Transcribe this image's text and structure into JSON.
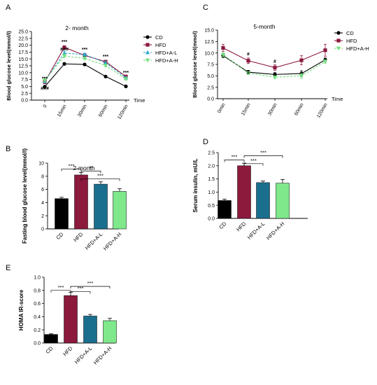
{
  "chart_data": [
    {
      "panel": "A",
      "type": "line",
      "title": "2- month",
      "xlabel": "Time",
      "ylabel": "Blood glucose level(mmol/l)",
      "categories": [
        "0",
        "15min",
        "30min",
        "60min",
        "120min"
      ],
      "ylim": [
        0,
        25
      ],
      "yticks": [
        "0.0",
        "2.5",
        "5.0",
        "7.5",
        "10.0",
        "12.5",
        "15.0",
        "17.5",
        "20.0",
        "22.5",
        "25.0"
      ],
      "legend_position": "top-right",
      "series": [
        {
          "name": "CD",
          "values": [
            4.9,
            13.2,
            13.0,
            8.6,
            5.0
          ],
          "err": [
            0.5,
            0.4,
            0.4,
            0.3,
            0.3
          ]
        },
        {
          "name": "HFD",
          "values": [
            6.6,
            19.2,
            16.3,
            14.0,
            8.6
          ],
          "err": [
            0.6,
            0.6,
            0.5,
            0.5,
            0.4
          ]
        },
        {
          "name": "HFD+A-L",
          "values": [
            6.9,
            17.1,
            16.6,
            13.6,
            8.1
          ],
          "err": [
            0.6,
            0.7,
            0.5,
            0.5,
            0.5
          ]
        },
        {
          "name": "HFD+A-H",
          "values": [
            7.2,
            16.1,
            15.2,
            12.6,
            7.7
          ],
          "err": [
            0.6,
            0.6,
            0.5,
            0.5,
            0.4
          ]
        }
      ],
      "annotations": [
        {
          "text": "***",
          "cat": 0,
          "y": 7.3
        },
        {
          "text": "###",
          "cat": 0,
          "y": 3.7
        },
        {
          "text": "***",
          "cat": 1,
          "y": 20.6
        },
        {
          "text": "###",
          "cat": 1,
          "y": 18.0
        },
        {
          "text": "***",
          "cat": 2,
          "y": 17.8
        },
        {
          "text": "***",
          "cat": 3,
          "y": 15.3
        },
        {
          "text": "***",
          "cat": 4,
          "y": 9.4
        }
      ]
    },
    {
      "panel": "C",
      "type": "line",
      "title": "5-month",
      "xlabel": "Time",
      "ylabel": "Blood glucose level(mmol)",
      "categories": [
        "0min",
        "15min",
        "30min",
        "60min",
        "120min"
      ],
      "ylim": [
        0,
        15
      ],
      "yticks": [
        "0.0",
        "2.5",
        "5.0",
        "7.5",
        "10.0",
        "12.5",
        "15.0"
      ],
      "legend_position": "top-right",
      "series": [
        {
          "name": "CD",
          "values": [
            9.4,
            5.8,
            5.3,
            5.5,
            8.5
          ],
          "err": [
            0.4,
            0.4,
            0.4,
            0.6,
            0.4
          ]
        },
        {
          "name": "HFD",
          "values": [
            11.1,
            8.3,
            6.8,
            8.4,
            10.6
          ],
          "err": [
            0.8,
            0.6,
            0.6,
            1.0,
            1.3
          ]
        },
        {
          "name": "HFD+A-H",
          "values": [
            9.6,
            5.6,
            4.7,
            5.0,
            8.1
          ],
          "err": [
            0.4,
            0.3,
            0.3,
            0.5,
            0.4
          ]
        }
      ],
      "annotations": [
        {
          "text": "#",
          "cat": 1,
          "y": 9.4
        },
        {
          "text": "#",
          "cat": 2,
          "y": 7.8
        },
        {
          "text": "*",
          "cat": 1,
          "y": 5.1
        }
      ]
    },
    {
      "panel": "B",
      "type": "bar",
      "title": "2-month",
      "ylabel": "Fasting blood glucose level(mmol/l)",
      "categories": [
        "CD",
        "HFD",
        "HFD+A-L",
        "HFD+A-H"
      ],
      "values": [
        4.6,
        8.2,
        6.8,
        5.7
      ],
      "err": [
        0.2,
        0.35,
        0.35,
        0.4
      ],
      "colors": [
        "#000000",
        "#8b1a3d",
        "#1a6f8e",
        "#7ee88a"
      ],
      "ylim": [
        0,
        10
      ],
      "yticks": [
        "0",
        "2",
        "4",
        "6",
        "8",
        "10"
      ],
      "significance": [
        {
          "from": 0,
          "to": 1,
          "text": "***",
          "y": 9.1
        },
        {
          "from": 1,
          "to": 2,
          "text": "**",
          "y": 8.8
        },
        {
          "from": 1,
          "to": 3,
          "text": "***",
          "y": 7.6
        }
      ]
    },
    {
      "panel": "D",
      "type": "bar",
      "title": "",
      "ylabel": "Serum insulin, mU/L",
      "categories": [
        "CD",
        "HFD",
        "HFD+A-L",
        "HFD+A-H"
      ],
      "values": [
        0.68,
        2.0,
        1.36,
        1.34
      ],
      "err": [
        0.05,
        0.1,
        0.06,
        0.14
      ],
      "colors": [
        "#000000",
        "#8b1a3d",
        "#1a6f8e",
        "#7ee88a"
      ],
      "ylim": [
        0,
        2.5
      ],
      "yticks": [
        "0.0",
        "0.5",
        "1.0",
        "1.5",
        "2.0",
        "2.5"
      ],
      "significance": [
        {
          "from": 0,
          "to": 1,
          "text": "***",
          "y": 2.22
        },
        {
          "from": 1,
          "to": 2,
          "text": "***",
          "y": 2.08
        },
        {
          "from": 1,
          "to": 3,
          "text": "***",
          "y": 2.38
        }
      ]
    },
    {
      "panel": "E",
      "type": "bar",
      "title": "",
      "ylabel": "HOMA IR-score",
      "categories": [
        "CD",
        "HFD",
        "HFD+A-L",
        "HFD+A-H"
      ],
      "values": [
        0.13,
        0.72,
        0.41,
        0.34
      ],
      "err": [
        0.01,
        0.05,
        0.025,
        0.035
      ],
      "colors": [
        "#000000",
        "#8b1a3d",
        "#1a6f8e",
        "#7ee88a"
      ],
      "ylim": [
        0,
        1.0
      ],
      "yticks": [
        "0.0",
        "0.2",
        "0.4",
        "0.6",
        "0.8",
        "1.0"
      ],
      "significance": [
        {
          "from": 0,
          "to": 1,
          "text": "***",
          "y": 0.8
        },
        {
          "from": 1,
          "to": 2,
          "text": "***",
          "y": 0.78
        },
        {
          "from": 1,
          "to": 3,
          "text": "***",
          "y": 0.86
        }
      ]
    }
  ],
  "line_styles": {
    "CD": {
      "color": "#000000",
      "marker": "circle",
      "dash": ""
    },
    "HFD": {
      "color": "#8b1a3d",
      "marker": "square",
      "dash": ""
    },
    "HFD+A-L": {
      "color": "#2aa9c9",
      "marker": "triangle",
      "dash": "3,2"
    },
    "HFD+A-H": {
      "color": "#6fe07d",
      "marker": "triangle-down",
      "dash": "3,2"
    }
  }
}
